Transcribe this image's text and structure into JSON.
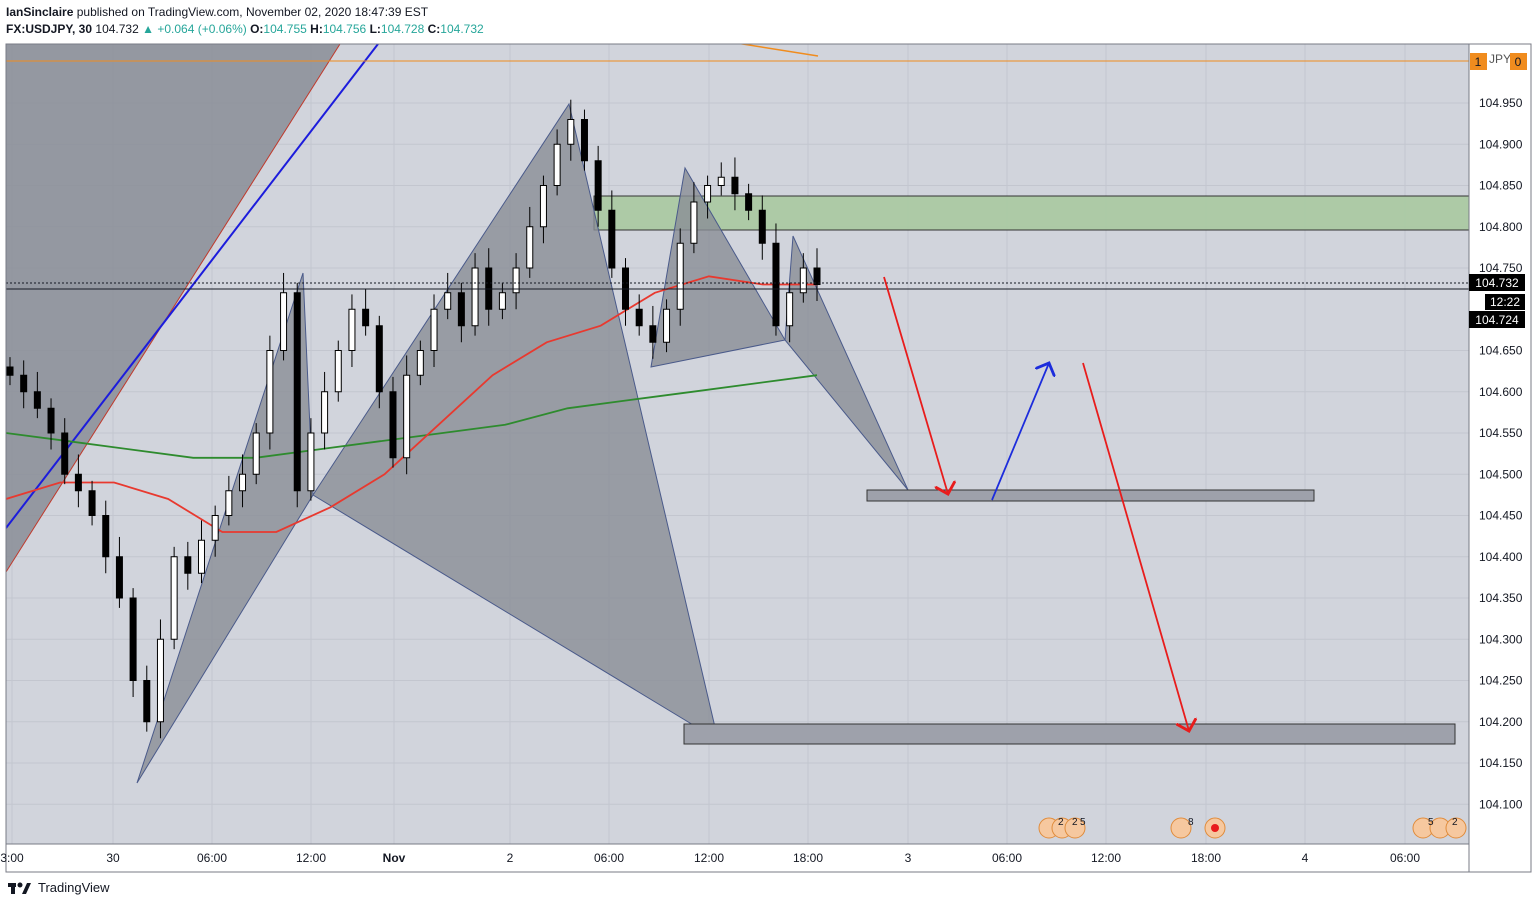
{
  "header": {
    "author": "IanSinclaire",
    "published": "published on TradingView.com, November 02, 2020 18:47:39 EST",
    "symbol": "FX:USDJPY, 30",
    "last": "104.732",
    "change": "▲ +0.064 (+0.06%)",
    "o_label": "O:",
    "o": "104.755",
    "h_label": "H:",
    "h": "104.756",
    "l_label": "L:",
    "l": "104.728",
    "c_label": "C:",
    "c": "104.732"
  },
  "price_axis": {
    "currency": "JPY",
    "scale_left_tag": "1",
    "scale_right_tag": "0",
    "ticks": [
      "104.950",
      "104.900",
      "104.850",
      "104.800",
      "104.750",
      "104.650",
      "104.600",
      "104.550",
      "104.500",
      "104.450",
      "104.400",
      "104.350",
      "104.300",
      "104.250",
      "104.200",
      "104.150",
      "104.100"
    ],
    "last_price_label": "104.732",
    "countdown_label": "12:22",
    "bid_label": "104.724"
  },
  "time_axis": {
    "ticks": [
      "3:00",
      "30",
      "06:00",
      "12:00",
      "Nov",
      "2",
      "06:00",
      "12:00",
      "18:00",
      "3",
      "06:00",
      "12:00",
      "18:00",
      "4",
      "06:00"
    ]
  },
  "events": {
    "group1_a": "2",
    "group1_b": "2",
    "group1_c": "5",
    "group2": "8",
    "group3_a": "5",
    "group3_b": "2"
  },
  "footer": {
    "brand": "TradingView"
  },
  "chart_data": {
    "type": "candlestick",
    "symbol": "FX:USDJPY",
    "interval": "30",
    "ylim": [
      104.08,
      105.0
    ],
    "grid": true,
    "colors": {
      "background": "#d1d4dc",
      "bull": "#ffffff",
      "bear": "#000000",
      "ma_fast": "#e8392f",
      "ma_slow": "#2e8b2e",
      "trendline": "#1c1cdc",
      "pattern_fill": "#8a8d96",
      "supply_zone": "#a9c9a0",
      "target_zone": "#9ea1ab",
      "arrow_down": "#e81c1c",
      "arrow_up": "#1c2cdc",
      "last_price_tag": "#000000",
      "horizontal_level": "#f08c1e"
    },
    "closes_approx": [
      104.62,
      104.6,
      104.58,
      104.55,
      104.5,
      104.48,
      104.45,
      104.4,
      104.35,
      104.25,
      104.2,
      104.3,
      104.4,
      104.38,
      104.42,
      104.45,
      104.48,
      104.5,
      104.55,
      104.65,
      104.72,
      104.48,
      104.55,
      104.6,
      104.65,
      104.7,
      104.68,
      104.6,
      104.52,
      104.62,
      104.65,
      104.7,
      104.72,
      104.68,
      104.75,
      104.7,
      104.72,
      104.75,
      104.8,
      104.85,
      104.9,
      104.93,
      104.88,
      104.82,
      104.75,
      104.7,
      104.68,
      104.66,
      104.7,
      104.78,
      104.83,
      104.85,
      104.86,
      104.84,
      104.82,
      104.78,
      104.68,
      104.72,
      104.75,
      104.73
    ],
    "ma_fast_approx": [
      104.47,
      104.49,
      104.49,
      104.47,
      104.43,
      104.43,
      104.46,
      104.5,
      104.56,
      104.62,
      104.66,
      104.68,
      104.72,
      104.74,
      104.73,
      104.73
    ],
    "ma_slow_approx": [
      104.55,
      104.54,
      104.53,
      104.52,
      104.52,
      104.53,
      104.54,
      104.55,
      104.56,
      104.58,
      104.59,
      104.6,
      104.61,
      104.62
    ],
    "harmonic_points": [
      104.125,
      104.745,
      104.475,
      104.95,
      104.18,
      104.87,
      104.655,
      104.785,
      104.48
    ],
    "supply_zone": [
      104.795,
      104.838
    ],
    "target_zones": [
      [
        104.47,
        104.485
      ],
      [
        104.175,
        104.2
      ]
    ],
    "horizontal_level": 104.985,
    "last_price": 104.732,
    "bid": 104.724
  }
}
